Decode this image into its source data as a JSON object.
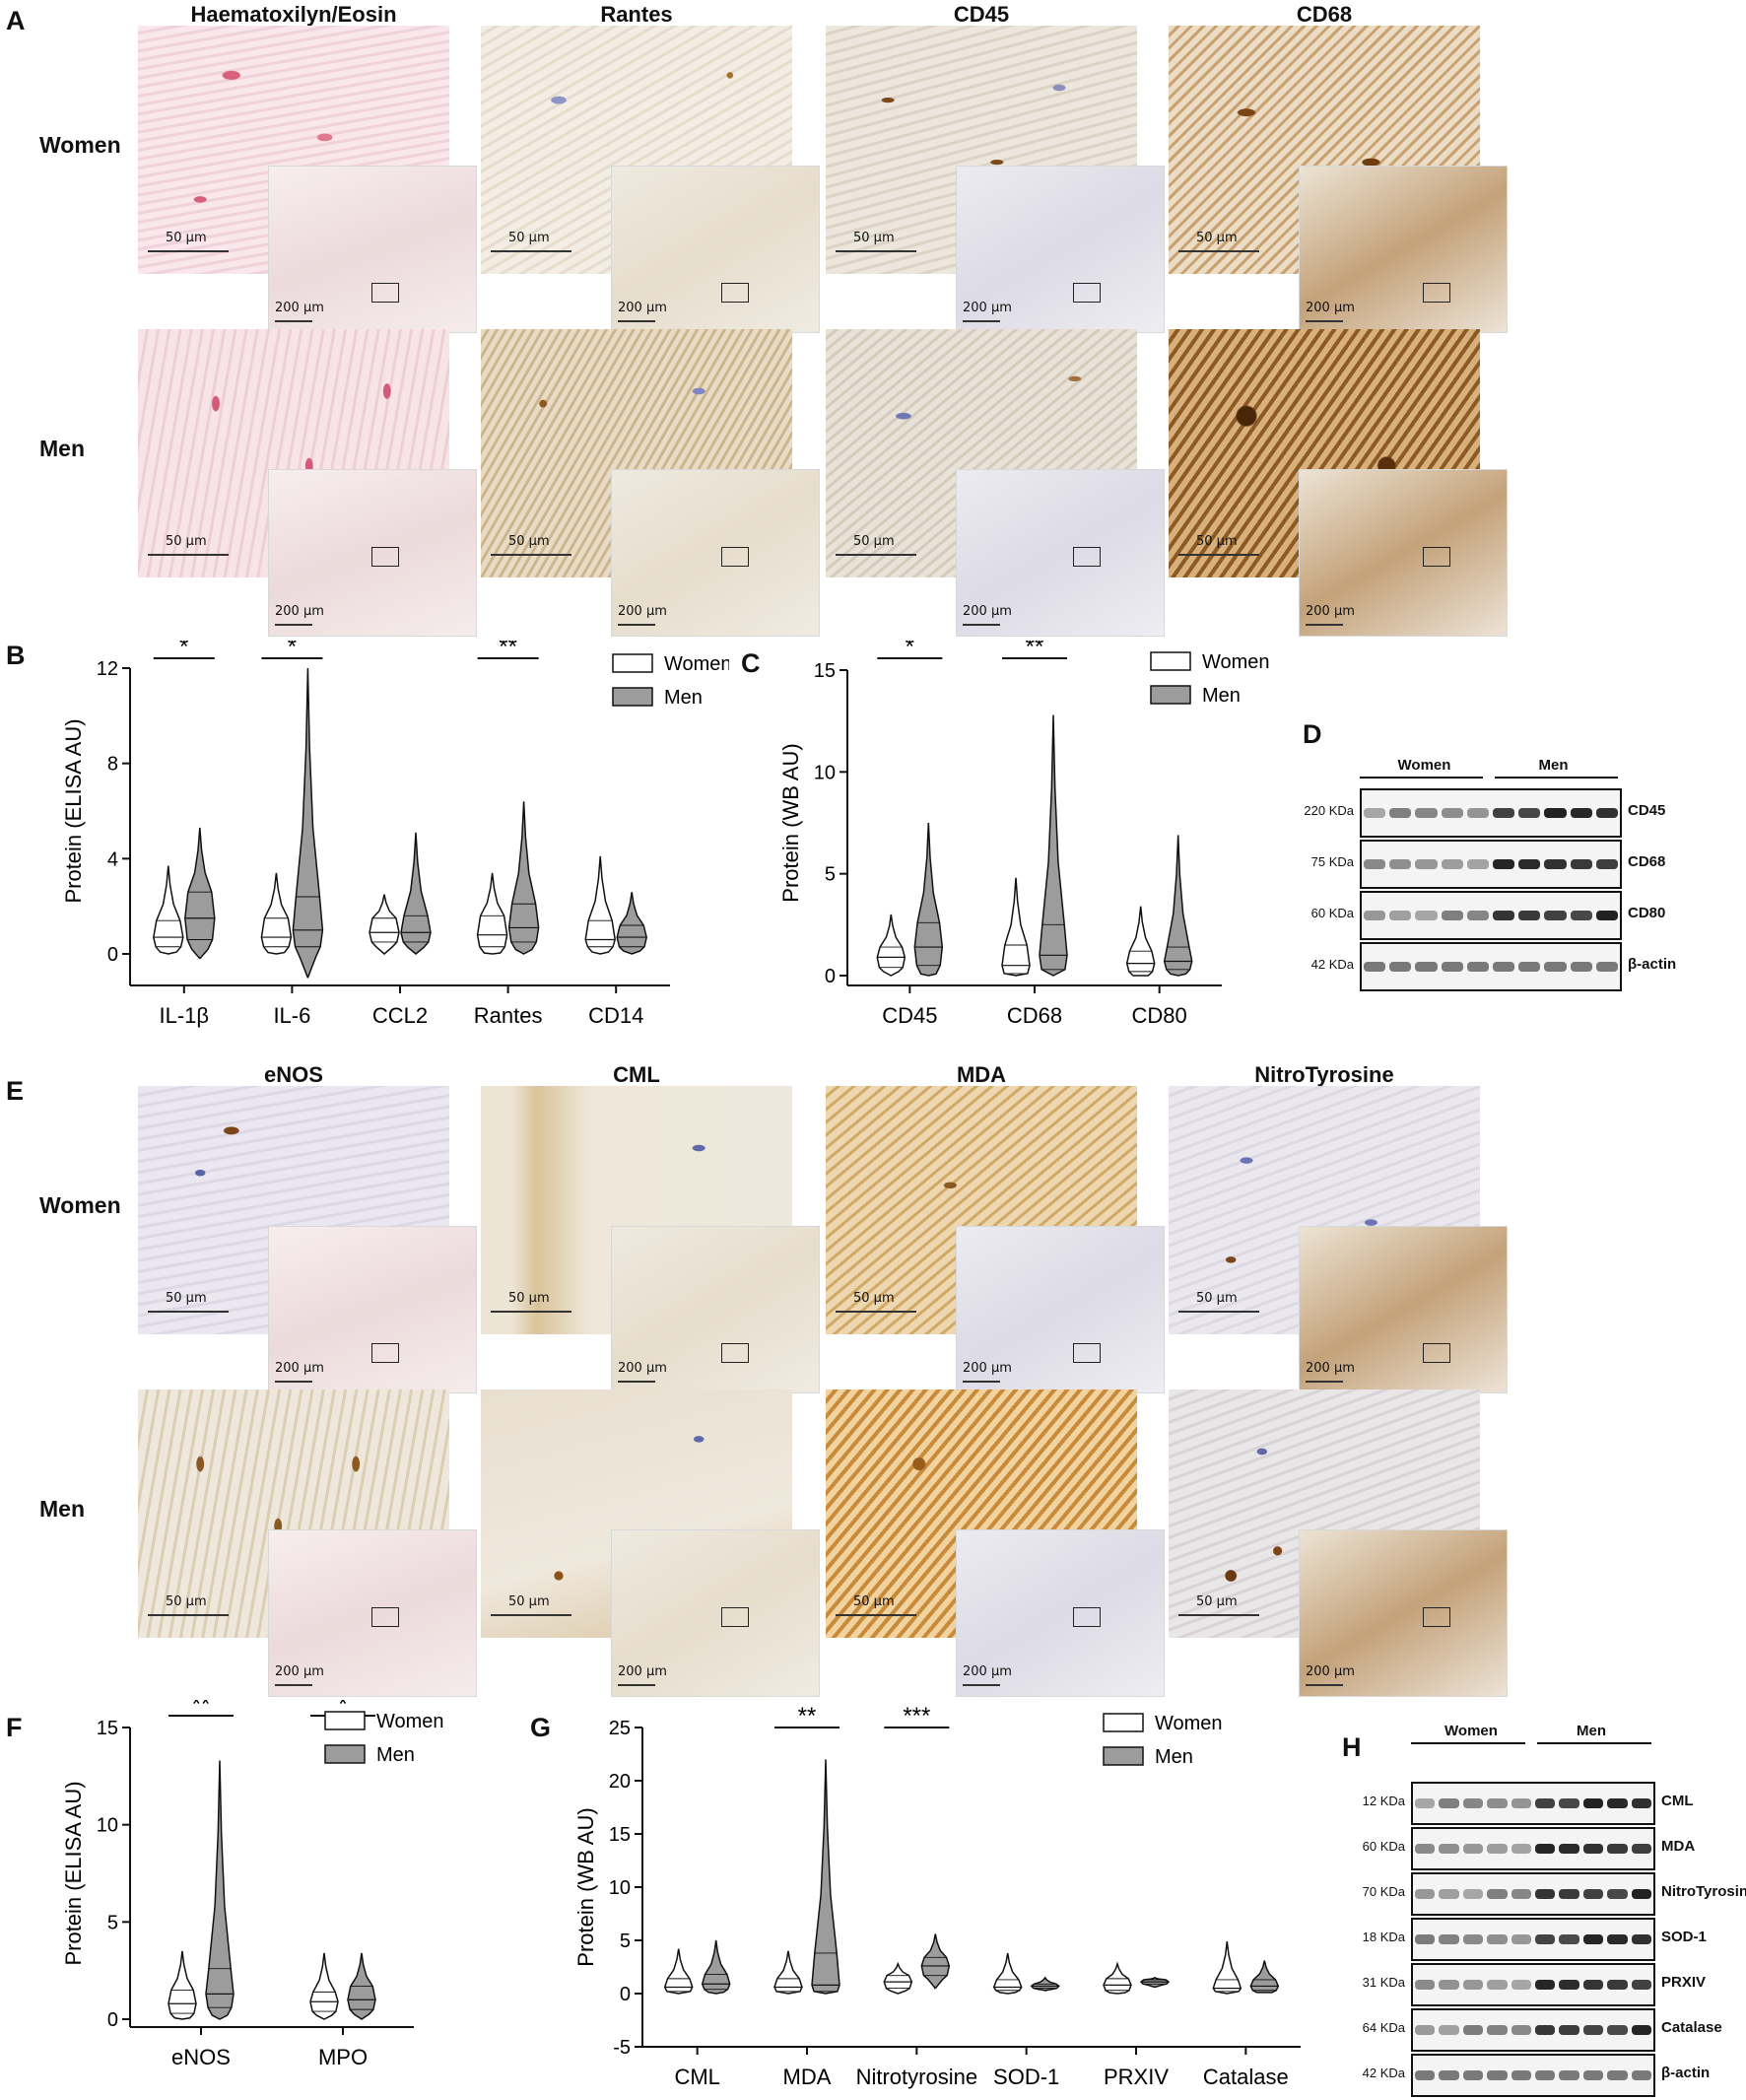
{
  "panels": {
    "A": "A",
    "B": "B",
    "C": "C",
    "D": "D",
    "E": "E",
    "F": "F",
    "G": "G",
    "H": "H"
  },
  "histo_top": {
    "columns": [
      "Haematoxilyn/Eosin",
      "Rantes",
      "CD45",
      "CD68"
    ],
    "rows": [
      "Women",
      "Men"
    ],
    "scale_main": "50 µm",
    "scale_inset": "200 µm"
  },
  "histo_bottom": {
    "columns": [
      "eNOS",
      "CML",
      "MDA",
      "NitroTyrosine"
    ],
    "rows": [
      "Women",
      "Men"
    ],
    "scale_main": "50 µm",
    "scale_inset": "200 µm"
  },
  "legend": {
    "women": "Women",
    "men": "Men"
  },
  "colors": {
    "women_fill": "#ffffff",
    "men_fill": "#9c9c9c",
    "stroke": "#111111"
  },
  "blot_D": {
    "groups": [
      "Women",
      "Men"
    ],
    "rows": [
      {
        "kda": "220 KDa",
        "protein": "CD45"
      },
      {
        "kda": "75 KDa",
        "protein": "CD68"
      },
      {
        "kda": "60 KDa",
        "protein": "CD80"
      },
      {
        "kda": "42 KDa",
        "protein": "β-actin"
      }
    ]
  },
  "blot_H": {
    "groups": [
      "Women",
      "Men"
    ],
    "rows": [
      {
        "kda": "12 KDa",
        "protein": "CML"
      },
      {
        "kda": "60 KDa",
        "protein": "MDA"
      },
      {
        "kda": "70 KDa",
        "protein": "NitroTyrosine"
      },
      {
        "kda": "18 KDa",
        "protein": "SOD-1"
      },
      {
        "kda": "31 KDa",
        "protein": "PRXIV"
      },
      {
        "kda": "64 KDa",
        "protein": "Catalase"
      },
      {
        "kda": "42 KDa",
        "protein": "β-actin"
      }
    ]
  },
  "chart_data": [
    {
      "panel": "B",
      "type": "violin",
      "ylabel": "Protein (ELISA AU)",
      "ylim": [
        0,
        12
      ],
      "yticks": [
        0,
        4,
        8,
        12
      ],
      "categories": [
        "IL-1β",
        "IL-6",
        "CCL2",
        "Rantes",
        "CD14"
      ],
      "significance": [
        "*",
        "*",
        "",
        "**",
        ""
      ],
      "series": [
        {
          "name": "Women",
          "min": [
            0,
            0,
            0,
            0,
            0
          ],
          "q1": [
            0.3,
            0.3,
            0.5,
            0.3,
            0.3
          ],
          "median": [
            0.7,
            0.7,
            0.9,
            0.8,
            0.6
          ],
          "q3": [
            1.4,
            1.5,
            1.5,
            1.6,
            1.4
          ],
          "max": [
            3.7,
            3.4,
            2.5,
            3.4,
            4.1
          ]
        },
        {
          "name": "Men",
          "min": [
            -0.2,
            -1.0,
            0,
            0,
            0
          ],
          "q1": [
            0.6,
            0.3,
            0.5,
            0.5,
            0.3
          ],
          "median": [
            1.5,
            1.0,
            0.9,
            1.1,
            0.7
          ],
          "q3": [
            2.6,
            2.4,
            1.6,
            2.1,
            1.2
          ],
          "max": [
            5.3,
            12.0,
            5.1,
            6.4,
            2.6
          ]
        }
      ]
    },
    {
      "panel": "C",
      "type": "violin",
      "ylabel": "Protein (WB AU)",
      "ylim": [
        0,
        15
      ],
      "yticks": [
        0,
        5,
        10,
        15
      ],
      "categories": [
        "CD45",
        "CD68",
        "CD80"
      ],
      "significance": [
        "*",
        "**",
        ""
      ],
      "series": [
        {
          "name": "Women",
          "min": [
            0,
            0,
            0
          ],
          "q1": [
            0.4,
            0.1,
            0.2
          ],
          "median": [
            0.9,
            0.5,
            0.6
          ],
          "q3": [
            1.4,
            1.5,
            1.2
          ],
          "max": [
            3.0,
            4.8,
            3.4
          ]
        },
        {
          "name": "Men",
          "min": [
            0,
            0,
            0
          ],
          "q1": [
            0.5,
            0.3,
            0.3
          ],
          "median": [
            1.4,
            1.0,
            0.7
          ],
          "q3": [
            2.6,
            2.5,
            1.4
          ],
          "max": [
            7.5,
            12.8,
            6.9
          ]
        }
      ]
    },
    {
      "panel": "F",
      "type": "violin",
      "ylabel": "Protein (ELISA AU)",
      "ylim": [
        0,
        15
      ],
      "yticks": [
        0,
        5,
        10,
        15
      ],
      "categories": [
        "eNOS",
        "MPO"
      ],
      "significance": [
        "**",
        "*"
      ],
      "series": [
        {
          "name": "Women",
          "min": [
            0,
            0
          ],
          "q1": [
            0.3,
            0.4
          ],
          "median": [
            0.8,
            0.9
          ],
          "q3": [
            1.5,
            1.4
          ],
          "max": [
            3.5,
            3.4
          ]
        },
        {
          "name": "Men",
          "min": [
            0,
            0
          ],
          "q1": [
            0.6,
            0.5
          ],
          "median": [
            1.3,
            1.0
          ],
          "q3": [
            2.6,
            1.7
          ],
          "max": [
            13.3,
            3.4
          ]
        }
      ]
    },
    {
      "panel": "G",
      "type": "violin",
      "ylabel": "Protein (WB AU)",
      "ylim": [
        -5,
        25
      ],
      "yticks": [
        -5,
        0,
        5,
        10,
        15,
        20,
        25
      ],
      "categories": [
        "CML",
        "MDA",
        "Nitrotyrosine",
        "SOD-1",
        "PRXIV",
        "Catalase"
      ],
      "significance": [
        "",
        "**",
        "***",
        "",
        "",
        ""
      ],
      "series": [
        {
          "name": "Women",
          "min": [
            0,
            0,
            0,
            0,
            0,
            0
          ],
          "q1": [
            0.2,
            0.2,
            0.5,
            0.3,
            0.3,
            0.2
          ],
          "median": [
            0.6,
            0.6,
            1.1,
            0.6,
            0.8,
            0.5
          ],
          "q3": [
            1.4,
            1.4,
            1.7,
            1.3,
            1.4,
            1.3
          ],
          "max": [
            4.2,
            4.0,
            2.8,
            3.8,
            2.8,
            4.9
          ]
        },
        {
          "name": "Men",
          "min": [
            0,
            0,
            0.5,
            0.3,
            0.6,
            0.1
          ],
          "q1": [
            0.4,
            0.2,
            1.7,
            0.5,
            0.9,
            0.3
          ],
          "median": [
            0.9,
            0.8,
            2.6,
            0.7,
            1.1,
            0.7
          ],
          "q3": [
            1.8,
            3.8,
            3.4,
            0.9,
            1.3,
            1.3
          ],
          "max": [
            5.0,
            22.0,
            5.6,
            1.5,
            1.5,
            3.1
          ]
        }
      ]
    }
  ]
}
